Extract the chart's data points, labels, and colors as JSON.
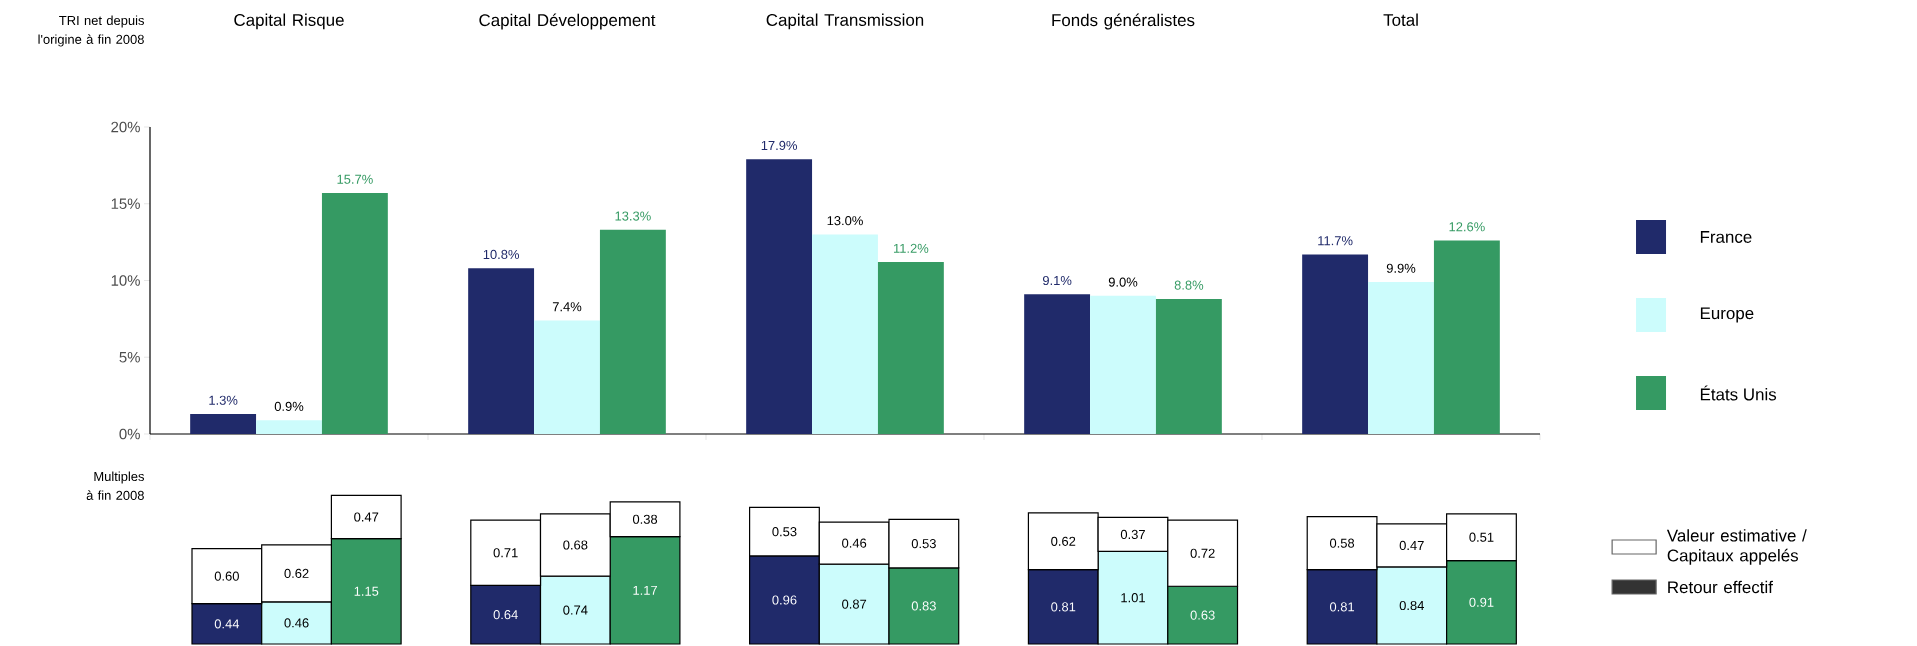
{
  "chart_data": [
    {
      "type": "bar",
      "ylabel": "TRI net depuis l'origine à fin 2008",
      "categories": [
        "Capital Risque",
        "Capital Développement",
        "Capital Transmission",
        "Fonds généralistes",
        "Total"
      ],
      "series": [
        {
          "name": "France",
          "color": "#202a6a",
          "values": [
            1.3,
            10.8,
            17.9,
            9.1,
            11.7
          ],
          "value_labels": [
            "1.3%",
            "10.8%",
            "17.9%",
            "9.1%",
            "11.7%"
          ]
        },
        {
          "name": "Europe",
          "color": "#ccfcfc",
          "values": [
            0.9,
            7.4,
            13.0,
            9.0,
            9.9
          ],
          "value_labels": [
            "0.9%",
            "7.4%",
            "13.0%",
            "9.0%",
            "9.9%"
          ]
        },
        {
          "name": "États Unis",
          "color": "#359a63",
          "values": [
            15.7,
            13.3,
            11.2,
            8.8,
            12.6
          ],
          "value_labels": [
            "15.7%",
            "13.3%",
            "11.2%",
            "8.8%",
            "12.6%"
          ]
        }
      ],
      "ylim": [
        0,
        20
      ],
      "yticks": [
        {
          "value": 0,
          "label": "0%"
        },
        {
          "value": 5,
          "label": "5%"
        },
        {
          "value": 10,
          "label": "10%"
        },
        {
          "value": 15,
          "label": "15%"
        },
        {
          "value": 20,
          "label": "20%"
        }
      ],
      "legend": "right"
    },
    {
      "type": "bar",
      "stacked": true,
      "ylabel": "Multiples à fin 2008",
      "categories": [
        null,
        null,
        null
      ],
      "series": [
        {
          "colors": [
            "#202a6a",
            "#ccfcfc",
            "#359a63"
          ],
          "values": [
            0.44,
            0.46,
            1.15
          ],
          "value_labels": [
            "0.44",
            "0.46",
            "1.15"
          ]
        },
        {
          "color": "#ffffff",
          "values": [
            0.6,
            0.62,
            0.47
          ],
          "value_labels": [
            "0.60",
            "0.62",
            "0.47"
          ]
        }
      ]
    },
    {
      "type": "bar",
      "stacked": true,
      "categories": [
        null,
        null,
        null
      ],
      "series": [
        {
          "colors": [
            "#202a6a",
            "#ccfcfc",
            "#359a63"
          ],
          "values": [
            0.64,
            0.74,
            1.17
          ],
          "value_labels": [
            "0.64",
            "0.74",
            "1.17"
          ]
        },
        {
          "color": "#ffffff",
          "values": [
            0.71,
            0.68,
            0.38
          ],
          "value_labels": [
            "0.71",
            "0.68",
            "0.38"
          ]
        }
      ]
    },
    {
      "type": "bar",
      "stacked": true,
      "categories": [
        null,
        null,
        null
      ],
      "series": [
        {
          "colors": [
            "#202a6a",
            "#ccfcfc",
            "#359a63"
          ],
          "values": [
            0.96,
            0.87,
            0.83
          ],
          "value_labels": [
            "0.96",
            "0.87",
            "0.83"
          ]
        },
        {
          "color": "#ffffff",
          "values": [
            0.53,
            0.46,
            0.53
          ],
          "value_labels": [
            "0.53",
            "0.46",
            "0.53"
          ]
        }
      ]
    },
    {
      "type": "bar",
      "stacked": true,
      "categories": [
        null,
        null,
        null
      ],
      "series": [
        {
          "colors": [
            "#202a6a",
            "#ccfcfc",
            "#359a63"
          ],
          "values": [
            0.81,
            1.01,
            0.63
          ],
          "value_labels": [
            "0.81",
            "1.01",
            "0.63"
          ]
        },
        {
          "color": "#ffffff",
          "values": [
            0.62,
            0.37,
            0.72
          ],
          "value_labels": [
            "0.62",
            "0.37",
            "0.72"
          ]
        }
      ]
    },
    {
      "type": "bar",
      "stacked": true,
      "legend": "right",
      "categories": [
        null,
        null,
        null
      ],
      "series": [
        {
          "name": "Retour effectif",
          "color": "#333333",
          "colors": [
            "#202a6a",
            "#ccfcfc",
            "#359a63"
          ],
          "values": [
            0.81,
            0.84,
            0.91
          ],
          "value_labels": [
            "0.81",
            "0.84",
            "0.91"
          ]
        },
        {
          "name": "Valeur estimative / Capitaux appelés",
          "color": "#ffffff",
          "values": [
            0.58,
            0.47,
            0.51
          ],
          "value_labels": [
            "0.58",
            "0.47",
            "0.51"
          ]
        }
      ]
    }
  ]
}
